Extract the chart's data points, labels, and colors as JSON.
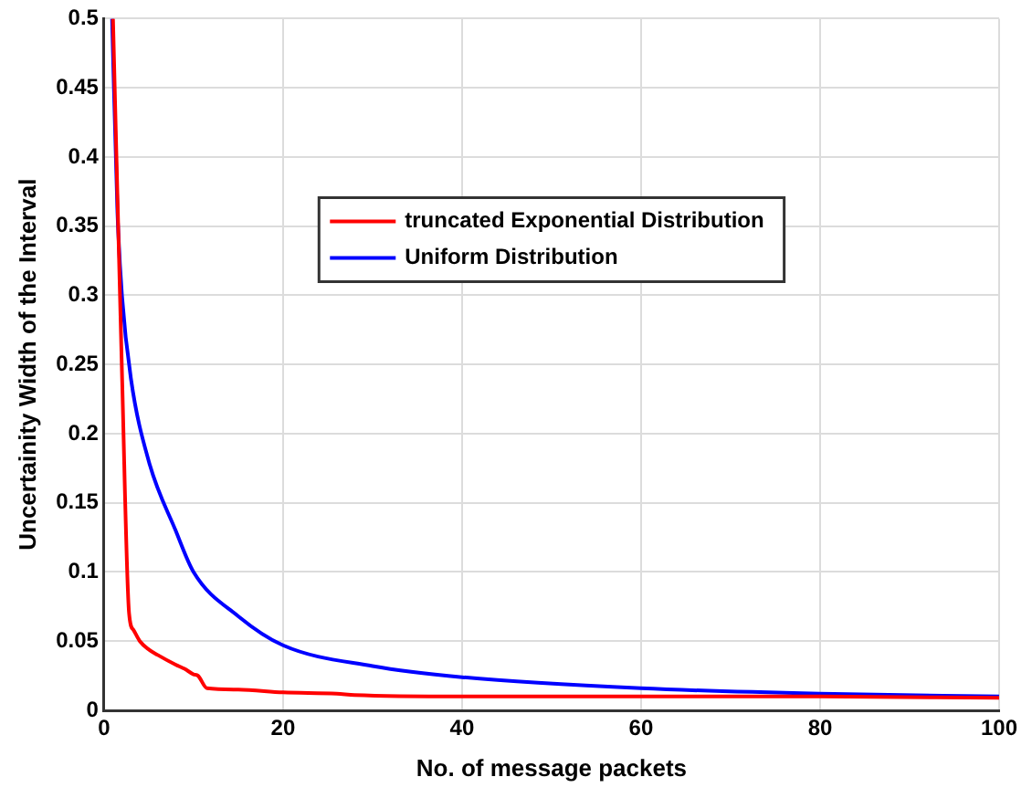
{
  "chart_data": {
    "type": "line",
    "xlabel": "No. of message packets",
    "ylabel": "Uncertainity Width of the Interval",
    "xlim": [
      0,
      100
    ],
    "xticks": [
      0,
      20,
      40,
      60,
      80,
      100
    ],
    "ylim": [
      0,
      0.5
    ],
    "yticks": [
      0,
      0.05,
      0.1,
      0.15,
      0.2,
      0.25,
      0.3,
      0.35,
      0.4,
      0.45,
      0.5
    ],
    "grid": true,
    "legend": "top",
    "marker": "none",
    "line_style": "solid",
    "series": [
      {
        "name": "truncated Exponential Distribution",
        "color": "#ff0000",
        "x": [
          1,
          2,
          2.8,
          3.3,
          4,
          5,
          6,
          8,
          9,
          10,
          10.5,
          11.5,
          15,
          20,
          26,
          28,
          40,
          60,
          80,
          100
        ],
        "values": [
          0.5,
          0.245,
          0.07,
          0.058,
          0.05,
          0.044,
          0.04,
          0.033,
          0.03,
          0.026,
          0.025,
          0.016,
          0.015,
          0.013,
          0.012,
          0.011,
          0.01,
          0.01,
          0.01,
          0.009
        ]
      },
      {
        "name": "Uniform Distribution",
        "color": "#0000ff",
        "x": [
          0.9,
          1.5,
          2,
          3,
          5,
          8,
          10,
          15,
          20,
          30,
          40,
          60,
          80,
          100
        ],
        "values": [
          0.5,
          0.36,
          0.3,
          0.24,
          0.18,
          0.13,
          0.1,
          0.068,
          0.047,
          0.032,
          0.024,
          0.016,
          0.012,
          0.01
        ]
      }
    ]
  }
}
